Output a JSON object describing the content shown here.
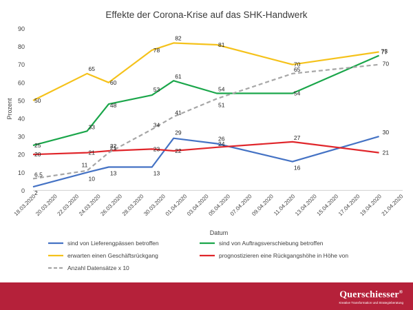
{
  "chart_data": {
    "type": "line",
    "title": "Effekte der Corona-Krise auf das SHK-Handwerk",
    "xlabel": "Datum",
    "ylabel": "Prozent",
    "ylim": [
      0,
      90
    ],
    "yticks": [
      0,
      10,
      20,
      30,
      40,
      50,
      60,
      70,
      80,
      90
    ],
    "grid": false,
    "legend_position": "bottom",
    "x": [
      "18.03.2020",
      "20.03.2020",
      "22.03.2020",
      "24.03.2020",
      "26.03.2020",
      "28.03.2020",
      "30.03.2020",
      "01.04.2020",
      "03.04.2020",
      "05.04.2020",
      "07.04.2020",
      "09.04.2020",
      "11.04.2020",
      "13.04.2020",
      "15.04.2020",
      "17.04.2020",
      "19.04.2020",
      "21.04.2020"
    ],
    "series": [
      {
        "name": "sind von Lieferengpässen betroffen",
        "color": "#4472c4",
        "dash": false,
        "points": [
          [
            "18.03.2020",
            2
          ],
          [
            "23.03.2020",
            10
          ],
          [
            "25.03.2020",
            13
          ],
          [
            "29.03.2020",
            13
          ],
          [
            "31.03.2020",
            29
          ],
          [
            "04.04.2020",
            26
          ],
          [
            "11.04.2020",
            16
          ],
          [
            "19.04.2020",
            30
          ]
        ],
        "labels": [
          "2",
          "10",
          "13",
          "13",
          "29",
          "26",
          "16",
          "30"
        ]
      },
      {
        "name": "sind von Auftragsverschiebung betroffen",
        "color": "#1aa64a",
        "dash": false,
        "points": [
          [
            "18.03.2020",
            25
          ],
          [
            "23.03.2020",
            33
          ],
          [
            "25.03.2020",
            48
          ],
          [
            "29.03.2020",
            53
          ],
          [
            "31.03.2020",
            61
          ],
          [
            "04.04.2020",
            54
          ],
          [
            "11.04.2020",
            54
          ],
          [
            "19.04.2020",
            75
          ]
        ],
        "labels": [
          "25",
          "33",
          "48",
          "53",
          "61",
          "54",
          "54",
          "75"
        ]
      },
      {
        "name": "erwarten einen Geschäftsrückgang",
        "color": "#f5c21b",
        "dash": false,
        "points": [
          [
            "18.03.2020",
            50
          ],
          [
            "23.03.2020",
            65
          ],
          [
            "25.03.2020",
            60
          ],
          [
            "29.03.2020",
            78
          ],
          [
            "31.03.2020",
            82
          ],
          [
            "04.04.2020",
            81
          ],
          [
            "11.04.2020",
            70
          ],
          [
            "19.04.2020",
            77
          ]
        ],
        "labels": [
          "50",
          "65",
          "60",
          "78",
          "82",
          "81",
          "70",
          "77"
        ]
      },
      {
        "name": "prognostizieren eine Rückgangshöhe in Höhe von",
        "color": "#e0262b",
        "dash": false,
        "points": [
          [
            "18.03.2020",
            20
          ],
          [
            "23.03.2020",
            21
          ],
          [
            "25.03.2020",
            22
          ],
          [
            "29.03.2020",
            23
          ],
          [
            "31.03.2020",
            22
          ],
          [
            "04.04.2020",
            24
          ],
          [
            "11.04.2020",
            27
          ],
          [
            "19.04.2020",
            21
          ]
        ],
        "labels": [
          "20",
          "21",
          "22",
          "23",
          "22",
          "24",
          "27",
          "21"
        ]
      },
      {
        "name": "Anzahl Datensätze x 10",
        "color": "#a6a6a6",
        "dash": true,
        "points": [
          [
            "18.03.2020",
            6.5
          ],
          [
            "23.03.2020",
            11
          ],
          [
            "25.03.2020",
            21
          ],
          [
            "29.03.2020",
            34
          ],
          [
            "31.03.2020",
            41
          ],
          [
            "04.04.2020",
            51
          ],
          [
            "11.04.2020",
            65
          ],
          [
            "19.04.2020",
            70
          ]
        ],
        "labels": [
          "6,5",
          "11",
          "21",
          "34",
          "41",
          "51",
          "65",
          "70"
        ]
      }
    ]
  },
  "branding": {
    "name": "Querschiesser",
    "reg": "®",
    "tagline": "Kreative Transformation und Strategieberatung",
    "color": "#b5213a"
  }
}
